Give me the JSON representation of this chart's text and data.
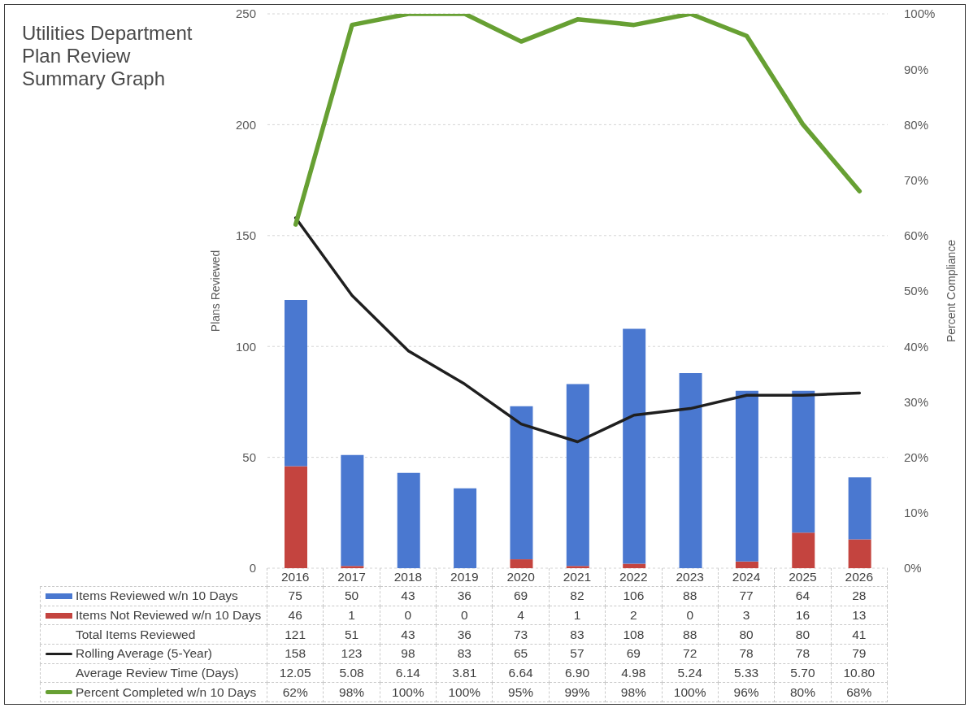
{
  "chart_data": {
    "type": "bar",
    "title": "Utilities Department\nPlan Review\nSummary Graph",
    "categories": [
      "2016",
      "2017",
      "2018",
      "2019",
      "2020",
      "2021",
      "2022",
      "2023",
      "2024",
      "2025",
      "2026"
    ],
    "series": [
      {
        "name": "Items Not Reviewed w/n 10 Days",
        "color": "#c4443f",
        "values": [
          46,
          1,
          0,
          0,
          4,
          1,
          2,
          0,
          3,
          16,
          13
        ]
      },
      {
        "name": "Items Reviewed w/n 10 Days",
        "color": "#4a78d0",
        "values": [
          75,
          50,
          43,
          36,
          69,
          82,
          106,
          88,
          77,
          64,
          28
        ]
      },
      {
        "name": "Rolling Average (5-Year)",
        "type": "line",
        "color": "#1f1f1f",
        "values": [
          158,
          123,
          98,
          83,
          65,
          57,
          69,
          72,
          78,
          78,
          79
        ]
      },
      {
        "name": "Percent Completed w/n 10 Days",
        "type": "line",
        "axis": "y2",
        "color": "#67a033",
        "values": [
          62,
          98,
          100,
          100,
          95,
          99,
          98,
          100,
          96,
          80,
          68
        ],
        "value_labels": [
          "62%",
          "98%",
          "100%",
          "100%",
          "95%",
          "99%",
          "98%",
          "100%",
          "96%",
          "80%",
          "68%"
        ]
      }
    ],
    "stacked": true,
    "annotations": [
      "Total Items Reviewed",
      "121",
      "51",
      "43",
      "36",
      "73",
      "83",
      "108",
      "88",
      "80",
      "80",
      "41",
      "Average Review Time (Days)",
      "12.05",
      "5.08",
      "6.14",
      "3.81",
      "6.64",
      "6.90",
      "4.98",
      "5.24",
      "5.33",
      "5.70",
      "10.80"
    ],
    "ylabel": "Plans Reviewed",
    "y2label": "Percent Compliance",
    "ylim": [
      0,
      250
    ],
    "yticks": [
      0,
      50,
      100,
      150,
      200,
      250
    ],
    "y2lim": [
      0,
      100
    ],
    "y2ticks": [
      {
        "value": 0,
        "label": "0%"
      },
      {
        "value": 10,
        "label": "10%"
      },
      {
        "value": 20,
        "label": "20%"
      },
      {
        "value": 30,
        "label": "30%"
      },
      {
        "value": 40,
        "label": "40%"
      },
      {
        "value": 50,
        "label": "50%"
      },
      {
        "value": 60,
        "label": "60%"
      },
      {
        "value": 70,
        "label": "70%"
      },
      {
        "value": 80,
        "label": "80%"
      },
      {
        "value": 90,
        "label": "90%"
      },
      {
        "value": 100,
        "label": "100%"
      }
    ],
    "grid": "y",
    "legend": "bottom",
    "data_labels": true
  }
}
